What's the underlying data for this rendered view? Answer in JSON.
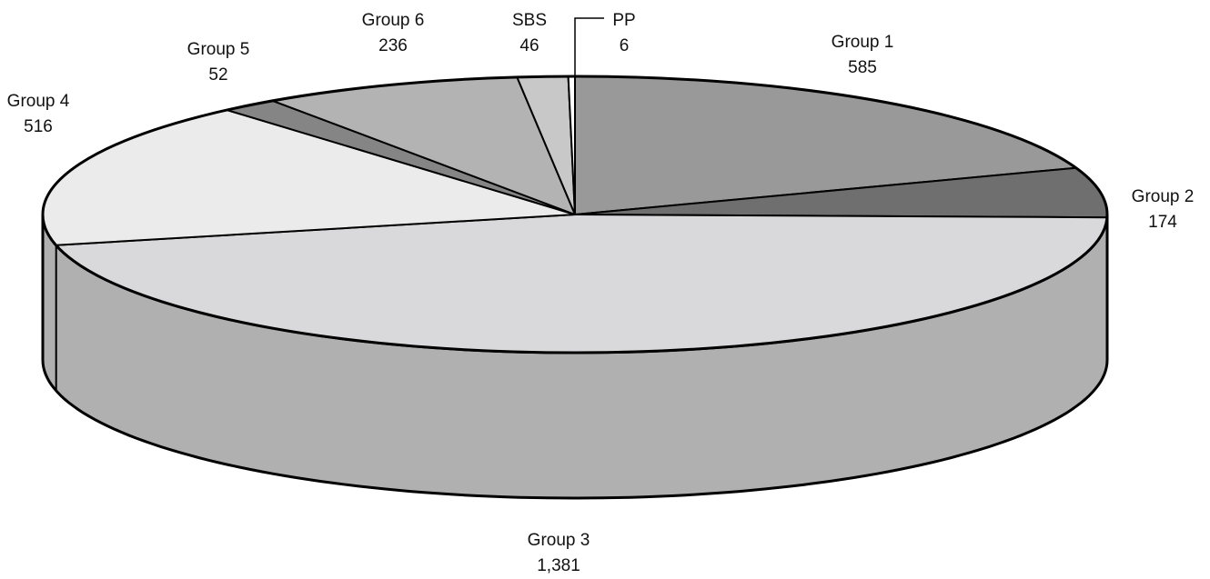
{
  "chart_data": {
    "type": "pie",
    "title": "",
    "style": "3d",
    "slices": [
      {
        "label": "Group 1",
        "value": 585,
        "value_label": "585",
        "color": "#999999"
      },
      {
        "label": "Group 2",
        "value": 174,
        "value_label": "174",
        "color": "#6f6f6f"
      },
      {
        "label": "Group 3",
        "value": 1381,
        "value_label": "1,381",
        "color": "#d9d9dc"
      },
      {
        "label": "Group 4",
        "value": 516,
        "value_label": "516",
        "color": "#ebebeb"
      },
      {
        "label": "Group 5",
        "value": 52,
        "value_label": "52",
        "color": "#858585"
      },
      {
        "label": "Group 6",
        "value": 236,
        "value_label": "236",
        "color": "#b3b3b3"
      },
      {
        "label": "SBS",
        "value": 46,
        "value_label": "46",
        "color": "#c8c8c8"
      },
      {
        "label": "PP",
        "value": 6,
        "value_label": "6",
        "color": "#ffffff"
      }
    ],
    "side_color": "#b0b0b0",
    "outline_color": "#000000"
  }
}
